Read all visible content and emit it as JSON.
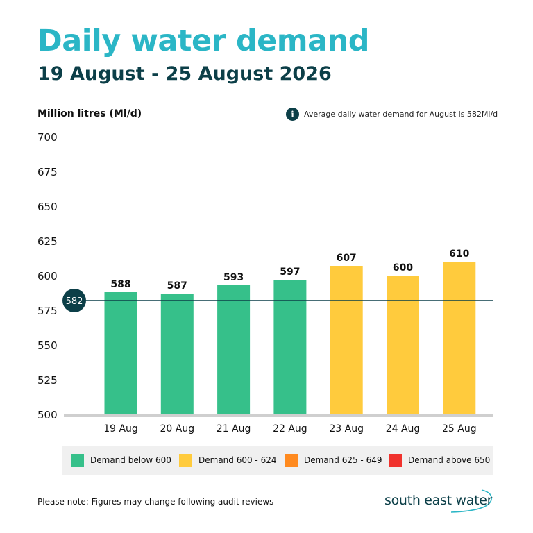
{
  "header": {
    "title": "Daily water demand",
    "subtitle": "19 August - 25 August 2026"
  },
  "unit_label": "Million litres (Ml/d)",
  "note": {
    "icon": "info-icon",
    "icon_glyph": "i",
    "text": "Average daily water demand for August is 582Ml/d"
  },
  "colors": {
    "title": "#2bb6c6",
    "dark": "#0c3f48",
    "green": "#36c08a",
    "yellow": "#ffcb3d",
    "orange": "#ff8a1f",
    "red": "#f0322d"
  },
  "chart_data": {
    "type": "bar",
    "categories": [
      "19 Aug",
      "20 Aug",
      "21 Aug",
      "22 Aug",
      "23 Aug",
      "24 Aug",
      "25 Aug"
    ],
    "values": [
      588,
      587,
      593,
      597,
      607,
      600,
      610
    ],
    "data_labels": [
      "588",
      "587",
      "593",
      "597",
      "607",
      "600",
      "610"
    ],
    "bar_colors": [
      "#36c08a",
      "#36c08a",
      "#36c08a",
      "#36c08a",
      "#ffcb3d",
      "#ffcb3d",
      "#ffcb3d"
    ],
    "ylim": [
      500,
      700
    ],
    "yticks": [
      700,
      675,
      650,
      625,
      600,
      575,
      550,
      525,
      500
    ],
    "ylabel": "Million litres (Ml/d)",
    "grid": false,
    "reference_line": {
      "value": 582,
      "label": "582",
      "color": "#0c3f48"
    }
  },
  "legend": {
    "placement": "bottom",
    "items": [
      {
        "label": "Demand below 600",
        "color": "#36c08a"
      },
      {
        "label": "Demand 600 - 624",
        "color": "#ffcb3d"
      },
      {
        "label": "Demand 625 - 649",
        "color": "#ff8a1f"
      },
      {
        "label": "Demand above 650",
        "color": "#f0322d"
      }
    ]
  },
  "footer": {
    "note": "Please note: Figures may change following audit reviews",
    "brand": "south east water"
  }
}
